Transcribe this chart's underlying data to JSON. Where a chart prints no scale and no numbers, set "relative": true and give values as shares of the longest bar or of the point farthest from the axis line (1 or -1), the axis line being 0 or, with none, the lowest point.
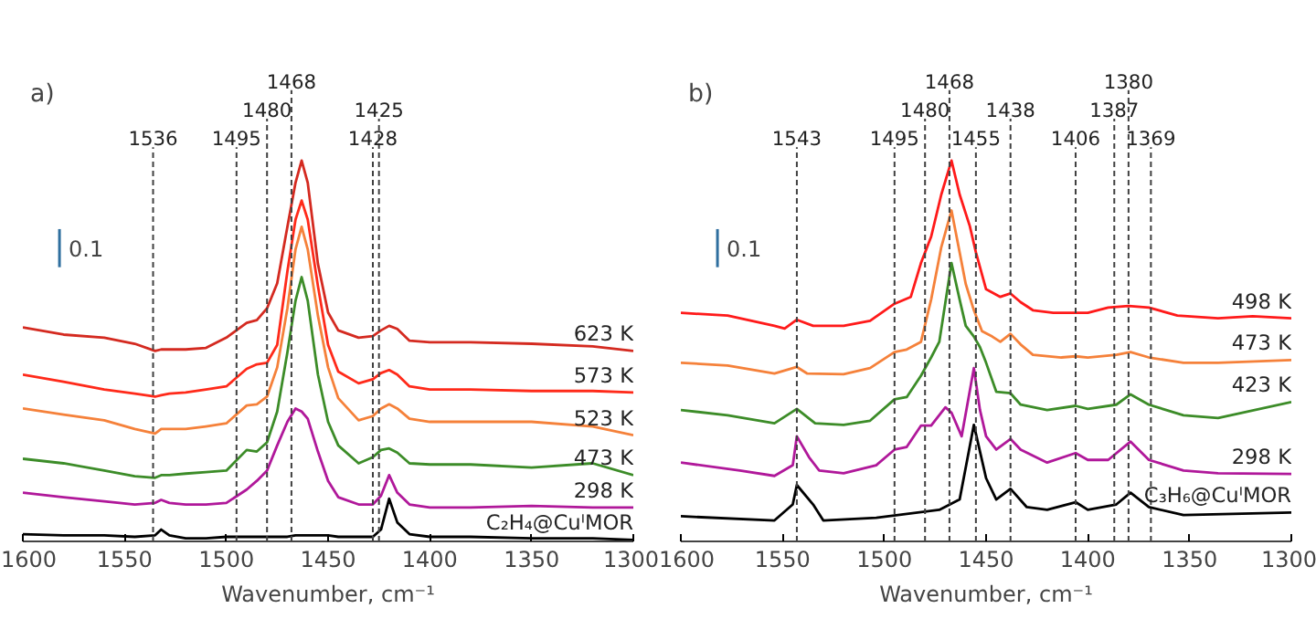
{
  "chart_data": [
    {
      "type": "line",
      "title": "a)",
      "xlabel": "Wavenumber, cm⁻¹",
      "relative": true,
      "tick_labels": "x",
      "grid": false,
      "legend": false,
      "marker": "none",
      "line_style": "solid",
      "xlim": [
        1600,
        1300
      ],
      "xticks": [
        1600,
        1550,
        1500,
        1450,
        1400,
        1350,
        1300
      ],
      "annotations": [
        "0.1"
      ],
      "ref_lines": [
        {
          "axis": "x",
          "value": 1536,
          "label": "1536",
          "line_style": "dashed",
          "color": "#404040"
        },
        {
          "axis": "x",
          "value": 1495,
          "label": "1495",
          "line_style": "dashed",
          "color": "#404040"
        },
        {
          "axis": "x",
          "value": 1480,
          "label": "1480",
          "line_style": "dashed",
          "color": "#404040"
        },
        {
          "axis": "x",
          "value": 1468,
          "label": "1468",
          "line_style": "dashed",
          "color": "#404040"
        },
        {
          "axis": "x",
          "value": 1428,
          "label": "1428",
          "line_style": "dashed",
          "color": "#404040"
        },
        {
          "axis": "x",
          "value": 1425,
          "label": "1425",
          "line_style": "dashed",
          "color": "#404040"
        }
      ],
      "x": [
        1600,
        1580,
        1560,
        1545,
        1535,
        1532,
        1528,
        1520,
        1510,
        1500,
        1490,
        1485,
        1480,
        1475,
        1470,
        1466,
        1463,
        1460,
        1455,
        1450,
        1445,
        1435,
        1428,
        1424,
        1420,
        1416,
        1410,
        1400,
        1380,
        1350,
        1320,
        1300
      ],
      "series": [
        {
          "name": "623 K",
          "color": "#d42a20",
          "values": [
            0.562,
            0.543,
            0.535,
            0.519,
            0.5,
            0.504,
            0.504,
            0.504,
            0.508,
            0.535,
            0.574,
            0.581,
            0.612,
            0.678,
            0.826,
            0.942,
            1.0,
            0.942,
            0.729,
            0.601,
            0.554,
            0.535,
            0.539,
            0.554,
            0.566,
            0.558,
            0.527,
            0.523,
            0.523,
            0.519,
            0.512,
            0.5
          ]
        },
        {
          "name": "573 K",
          "color": "#ff2a1a",
          "values": [
            0.438,
            0.419,
            0.399,
            0.388,
            0.38,
            0.384,
            0.388,
            0.391,
            0.399,
            0.407,
            0.453,
            0.465,
            0.469,
            0.516,
            0.709,
            0.845,
            0.895,
            0.845,
            0.671,
            0.516,
            0.446,
            0.415,
            0.426,
            0.442,
            0.45,
            0.438,
            0.407,
            0.399,
            0.399,
            0.395,
            0.395,
            0.391
          ]
        },
        {
          "name": "523 K",
          "color": "#f5813a",
          "values": [
            0.349,
            0.333,
            0.318,
            0.295,
            0.283,
            0.295,
            0.295,
            0.295,
            0.302,
            0.31,
            0.357,
            0.36,
            0.38,
            0.457,
            0.612,
            0.767,
            0.826,
            0.767,
            0.593,
            0.457,
            0.376,
            0.318,
            0.329,
            0.349,
            0.36,
            0.349,
            0.322,
            0.314,
            0.314,
            0.314,
            0.302,
            0.279
          ]
        },
        {
          "name": "473 K",
          "color": "#3c8c28",
          "values": [
            0.217,
            0.205,
            0.186,
            0.171,
            0.167,
            0.174,
            0.174,
            0.178,
            0.182,
            0.186,
            0.24,
            0.236,
            0.26,
            0.341,
            0.496,
            0.632,
            0.694,
            0.632,
            0.438,
            0.314,
            0.252,
            0.205,
            0.221,
            0.24,
            0.244,
            0.233,
            0.205,
            0.202,
            0.202,
            0.194,
            0.205,
            0.174
          ]
        },
        {
          "name": "298 K",
          "color": "#b0189a",
          "values": [
            0.128,
            0.116,
            0.105,
            0.097,
            0.101,
            0.109,
            0.101,
            0.097,
            0.097,
            0.101,
            0.136,
            0.159,
            0.186,
            0.252,
            0.314,
            0.349,
            0.341,
            0.322,
            0.236,
            0.159,
            0.116,
            0.097,
            0.097,
            0.12,
            0.174,
            0.128,
            0.097,
            0.089,
            0.089,
            0.093,
            0.089,
            0.089
          ]
        },
        {
          "name": "C₂H₄@CuᴵMOR",
          "color": "#000000",
          "values": [
            0.019,
            0.016,
            0.016,
            0.012,
            0.016,
            0.031,
            0.016,
            0.008,
            0.008,
            0.012,
            0.012,
            0.012,
            0.012,
            0.012,
            0.012,
            0.016,
            0.016,
            0.016,
            0.016,
            0.016,
            0.012,
            0.012,
            0.012,
            0.031,
            0.112,
            0.05,
            0.019,
            0.012,
            0.012,
            0.008,
            0.008,
            0.004
          ]
        }
      ]
    },
    {
      "type": "line",
      "title": "b)",
      "xlabel": "Wavenumber, cm⁻¹",
      "relative": true,
      "tick_labels": "x",
      "grid": false,
      "legend": false,
      "marker": "none",
      "line_style": "solid",
      "xlim": [
        1600,
        1300
      ],
      "xticks": [
        1600,
        1550,
        1500,
        1450,
        1400,
        1350,
        1300
      ],
      "annotations": [
        "0.1"
      ],
      "ref_lines": [
        {
          "axis": "x",
          "value": 1543,
          "label": "1543",
          "line_style": "dashed",
          "color": "#404040"
        },
        {
          "axis": "x",
          "value": 1495,
          "label": "1495",
          "line_style": "dashed",
          "color": "#404040"
        },
        {
          "axis": "x",
          "value": 1480,
          "label": "1480",
          "line_style": "dashed",
          "color": "#404040"
        },
        {
          "axis": "x",
          "value": 1468,
          "label": "1468",
          "line_style": "dashed",
          "color": "#404040"
        },
        {
          "axis": "x",
          "value": 1455,
          "label": "1455",
          "line_style": "dashed",
          "color": "#404040"
        },
        {
          "axis": "x",
          "value": 1438,
          "label": "1438",
          "line_style": "dashed",
          "color": "#404040"
        },
        {
          "axis": "x",
          "value": 1406,
          "label": "1406",
          "line_style": "dashed",
          "color": "#404040"
        },
        {
          "axis": "x",
          "value": 1387,
          "label": "1387",
          "line_style": "dashed",
          "color": "#404040"
        },
        {
          "axis": "x",
          "value": 1380,
          "label": "1380",
          "line_style": "dashed",
          "color": "#404040"
        },
        {
          "axis": "x",
          "value": 1369,
          "label": "1369",
          "line_style": "dashed",
          "color": "#404040"
        }
      ],
      "series": [
        {
          "name": "498 K",
          "color": "#ff1a1a",
          "x": [
            1600,
            1577,
            1554,
            1549,
            1543,
            1535,
            1520,
            1507,
            1495,
            1487,
            1482,
            1477,
            1472,
            1467,
            1463,
            1458,
            1455,
            1450,
            1443,
            1438,
            1433,
            1427,
            1417,
            1406,
            1400,
            1390,
            1380,
            1370,
            1356,
            1336,
            1319,
            1300
          ],
          "values": [
            0.6,
            0.593,
            0.566,
            0.559,
            0.582,
            0.566,
            0.566,
            0.579,
            0.624,
            0.642,
            0.731,
            0.8,
            0.911,
            1.0,
            0.911,
            0.828,
            0.759,
            0.662,
            0.642,
            0.651,
            0.628,
            0.607,
            0.6,
            0.6,
            0.6,
            0.614,
            0.618,
            0.614,
            0.593,
            0.586,
            0.591,
            0.586
          ]
        },
        {
          "name": "473 K",
          "color": "#f5813a",
          "x": [
            1600,
            1577,
            1554,
            1543,
            1538,
            1520,
            1507,
            1495,
            1489,
            1482,
            1477,
            1472,
            1467,
            1463,
            1460,
            1456,
            1452,
            1447,
            1443,
            1438,
            1433,
            1427,
            1413,
            1406,
            1400,
            1386,
            1379,
            1370,
            1353,
            1336,
            1300
          ],
          "values": [
            0.469,
            0.462,
            0.441,
            0.458,
            0.441,
            0.439,
            0.455,
            0.497,
            0.504,
            0.524,
            0.635,
            0.773,
            0.869,
            0.759,
            0.676,
            0.607,
            0.552,
            0.538,
            0.524,
            0.545,
            0.517,
            0.49,
            0.483,
            0.486,
            0.483,
            0.49,
            0.497,
            0.483,
            0.469,
            0.469,
            0.476
          ]
        },
        {
          "name": "423 K",
          "color": "#3c8c28",
          "x": [
            1600,
            1577,
            1554,
            1543,
            1534,
            1520,
            1507,
            1495,
            1489,
            1482,
            1477,
            1473,
            1467,
            1463,
            1460,
            1456,
            1453,
            1450,
            1445,
            1438,
            1433,
            1420,
            1406,
            1400,
            1386,
            1379,
            1370,
            1353,
            1336,
            1300
          ],
          "values": [
            0.345,
            0.331,
            0.31,
            0.348,
            0.31,
            0.306,
            0.317,
            0.373,
            0.379,
            0.435,
            0.483,
            0.524,
            0.731,
            0.635,
            0.566,
            0.538,
            0.51,
            0.469,
            0.393,
            0.389,
            0.359,
            0.345,
            0.356,
            0.348,
            0.359,
            0.386,
            0.359,
            0.331,
            0.324,
            0.366
          ]
        },
        {
          "name": "298 K",
          "color": "#b0189a",
          "x": [
            1600,
            1571,
            1554,
            1545,
            1543,
            1537,
            1532,
            1520,
            1504,
            1495,
            1489,
            1482,
            1477,
            1470,
            1467,
            1462,
            1456,
            1453,
            1450,
            1445,
            1438,
            1433,
            1420,
            1406,
            1400,
            1390,
            1379,
            1370,
            1353,
            1336,
            1300
          ],
          "values": [
            0.207,
            0.186,
            0.172,
            0.2,
            0.276,
            0.221,
            0.186,
            0.179,
            0.2,
            0.241,
            0.248,
            0.304,
            0.304,
            0.352,
            0.338,
            0.276,
            0.455,
            0.345,
            0.276,
            0.241,
            0.269,
            0.241,
            0.207,
            0.232,
            0.214,
            0.214,
            0.262,
            0.214,
            0.186,
            0.179,
            0.177
          ]
        },
        {
          "name": "C₃H₆@CuᴵMOR",
          "color": "#000000",
          "x": [
            1600,
            1554,
            1545,
            1543,
            1535,
            1530,
            1504,
            1473,
            1463,
            1456,
            1450,
            1445,
            1438,
            1430,
            1420,
            1406,
            1400,
            1386,
            1379,
            1370,
            1353,
            1300
          ],
          "values": [
            0.066,
            0.055,
            0.097,
            0.148,
            0.097,
            0.055,
            0.062,
            0.083,
            0.11,
            0.306,
            0.166,
            0.11,
            0.138,
            0.09,
            0.083,
            0.103,
            0.083,
            0.097,
            0.128,
            0.09,
            0.069,
            0.076
          ]
        }
      ]
    }
  ]
}
